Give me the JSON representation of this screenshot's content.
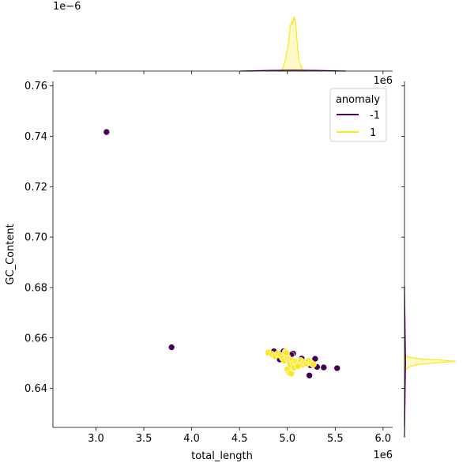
{
  "chart_data": {
    "type": "scatter",
    "xlabel": "total_length",
    "ylabel": "GC_Content",
    "x_offset_label": "1e6",
    "top_marginal_offset_label": "1e−6",
    "xlim": [
      2.55,
      6.1
    ],
    "ylim": [
      0.6245,
      0.7618
    ],
    "x_ticks": [
      3.0,
      3.5,
      4.0,
      4.5,
      5.0,
      5.5,
      6.0
    ],
    "x_tick_labels": [
      "3.0",
      "3.5",
      "4.0",
      "4.5",
      "5.0",
      "5.5",
      "6.0"
    ],
    "y_ticks": [
      0.64,
      0.66,
      0.68,
      0.7,
      0.72,
      0.74,
      0.76
    ],
    "y_tick_labels": [
      "0.64",
      "0.66",
      "0.68",
      "0.70",
      "0.72",
      "0.74",
      "0.76"
    ],
    "legend": {
      "title": "anomaly",
      "placement": "top-right",
      "entries": [
        {
          "label": "-1",
          "color": "#440154"
        },
        {
          "label": "1",
          "color": "#fde725"
        }
      ]
    },
    "series": [
      {
        "name": "-1",
        "color": "#440154",
        "points": [
          [
            3.11,
            0.7417
          ],
          [
            3.79,
            0.6563
          ],
          [
            4.86,
            0.6547
          ],
          [
            4.92,
            0.6515
          ],
          [
            4.96,
            0.6547
          ],
          [
            5.06,
            0.6538
          ],
          [
            5.15,
            0.6518
          ],
          [
            5.21,
            0.6499
          ],
          [
            5.23,
            0.6451
          ],
          [
            5.29,
            0.6517
          ],
          [
            5.31,
            0.6485
          ],
          [
            5.38,
            0.6483
          ],
          [
            5.52,
            0.648
          ],
          [
            5.24,
            0.6492
          ],
          [
            5.04,
            0.6533
          ]
        ]
      },
      {
        "name": "1",
        "color": "#fde725",
        "points": [
          [
            4.8,
            0.6542
          ],
          [
            4.84,
            0.6535
          ],
          [
            4.87,
            0.6527
          ],
          [
            4.9,
            0.6538
          ],
          [
            4.93,
            0.653
          ],
          [
            4.95,
            0.652
          ],
          [
            4.97,
            0.651
          ],
          [
            4.98,
            0.6545
          ],
          [
            5.0,
            0.6525
          ],
          [
            5.01,
            0.6515
          ],
          [
            5.02,
            0.6505
          ],
          [
            5.03,
            0.6495
          ],
          [
            5.05,
            0.6512
          ],
          [
            5.06,
            0.65
          ],
          [
            5.08,
            0.6507
          ],
          [
            5.1,
            0.6502
          ],
          [
            5.12,
            0.6497
          ],
          [
            5.14,
            0.651
          ],
          [
            5.16,
            0.6494
          ],
          [
            5.18,
            0.6503
          ],
          [
            5.2,
            0.6498
          ],
          [
            5.22,
            0.6509
          ],
          [
            5.25,
            0.65
          ],
          [
            5.27,
            0.6495
          ],
          [
            5.0,
            0.6475
          ],
          [
            5.02,
            0.646
          ],
          [
            5.04,
            0.6458
          ],
          [
            5.07,
            0.6482
          ],
          [
            5.11,
            0.6488
          ],
          [
            4.99,
            0.654
          ]
        ]
      }
    ],
    "marginal_x": {
      "peak_center": 5.06,
      "color_hi": "#fde725",
      "color_lo": "#440154"
    },
    "marginal_y": {
      "peak_center": 0.6505,
      "color_hi": "#fde725",
      "color_lo": "#440154"
    }
  }
}
